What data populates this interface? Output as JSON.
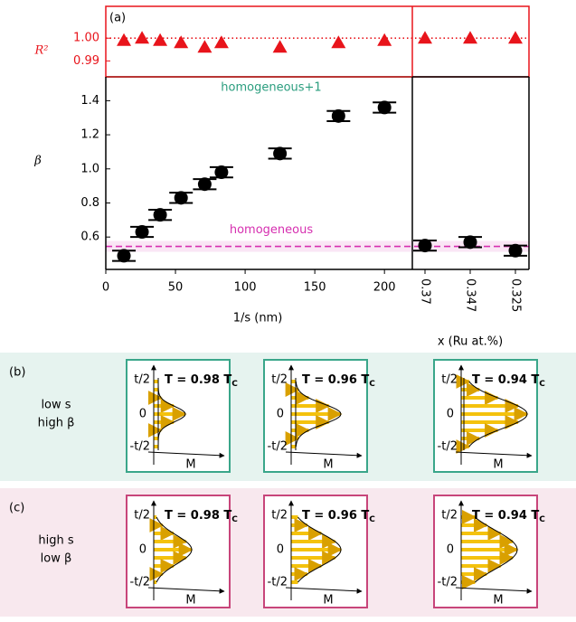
{
  "chart_data": [
    {
      "type": "scatter",
      "panel_label": "(a)",
      "ylabel": "β",
      "y2label": "R²",
      "xlabel": "1/s (nm)",
      "x": [
        13,
        26,
        39,
        54,
        71,
        83,
        125,
        167,
        200
      ],
      "xlim": [
        0,
        220
      ],
      "xticks": [
        0,
        50,
        100,
        150,
        200
      ],
      "ylim": [
        0.41,
        1.54
      ],
      "yticks": [
        0.6,
        0.8,
        {
          "value": 1,
          "label": "1.0"
        },
        1.2,
        1.4
      ],
      "y2lim": [
        0.983,
        1.014
      ],
      "y2ticks": [
        0.99,
        {
          "value": 1,
          "label": "1.00"
        }
      ],
      "series": [
        {
          "color": "#000000",
          "values": [
            0.49,
            0.63,
            0.73,
            0.83,
            0.91,
            0.98,
            1.09,
            1.31,
            1.36
          ],
          "yerr": [
            0.03,
            0.03,
            0.03,
            0.03,
            0.03,
            0.03,
            0.03,
            0.03,
            0.03
          ]
        },
        {
          "color": "#e8141b",
          "axis": "y2",
          "values": [
            0.999,
            1.0,
            0.999,
            0.998,
            0.996,
            0.998,
            0.996,
            0.998,
            0.999
          ]
        }
      ],
      "reference_lines": [
        {
          "axis": "y2",
          "value": 1,
          "color": "#e8141b",
          "style": "dotted"
        },
        {
          "value": 1.54,
          "label": "homogeneous+1",
          "color": "#2a9d7e",
          "style": "solid"
        },
        {
          "value": 0.545,
          "label": "homogeneous",
          "color": "#d62fb0",
          "style": "dashed"
        }
      ]
    },
    {
      "type": "scatter",
      "xlabel": "x (Ru at.%)",
      "categories": [
        "0.37",
        "0.347",
        "0.325"
      ],
      "ylim": [
        0.41,
        1.54
      ],
      "y2lim": [
        0.983,
        1.014
      ],
      "series": [
        {
          "color": "#000000",
          "values": [
            0.55,
            0.57,
            0.52
          ],
          "yerr": [
            0.03,
            0.03,
            0.03
          ]
        },
        {
          "color": "#e8141b",
          "axis": "y2",
          "values": [
            1.0,
            1.0,
            1.0
          ]
        }
      ]
    }
  ],
  "axis_labels": {
    "top": "t/2",
    "middle": "0",
    "bottom": "-t/2",
    "x": "M"
  },
  "panels": [
    {
      "label": "(b)",
      "caption": [
        "low s",
        "high β"
      ],
      "insets": [
        {
          "temperature": "T = 0.98 T",
          "subscript": "C"
        },
        {
          "temperature": "T = 0.96 T",
          "subscript": "C"
        },
        {
          "temperature": "T = 0.94 T",
          "subscript": "C"
        }
      ]
    },
    {
      "label": "(c)",
      "caption": [
        "high s",
        "low β"
      ],
      "insets": [
        {
          "temperature": "T = 0.98 T",
          "subscript": "C"
        },
        {
          "temperature": "T = 0.96 T",
          "subscript": "C"
        },
        {
          "temperature": "T = 0.94 T",
          "subscript": "C"
        }
      ]
    }
  ]
}
